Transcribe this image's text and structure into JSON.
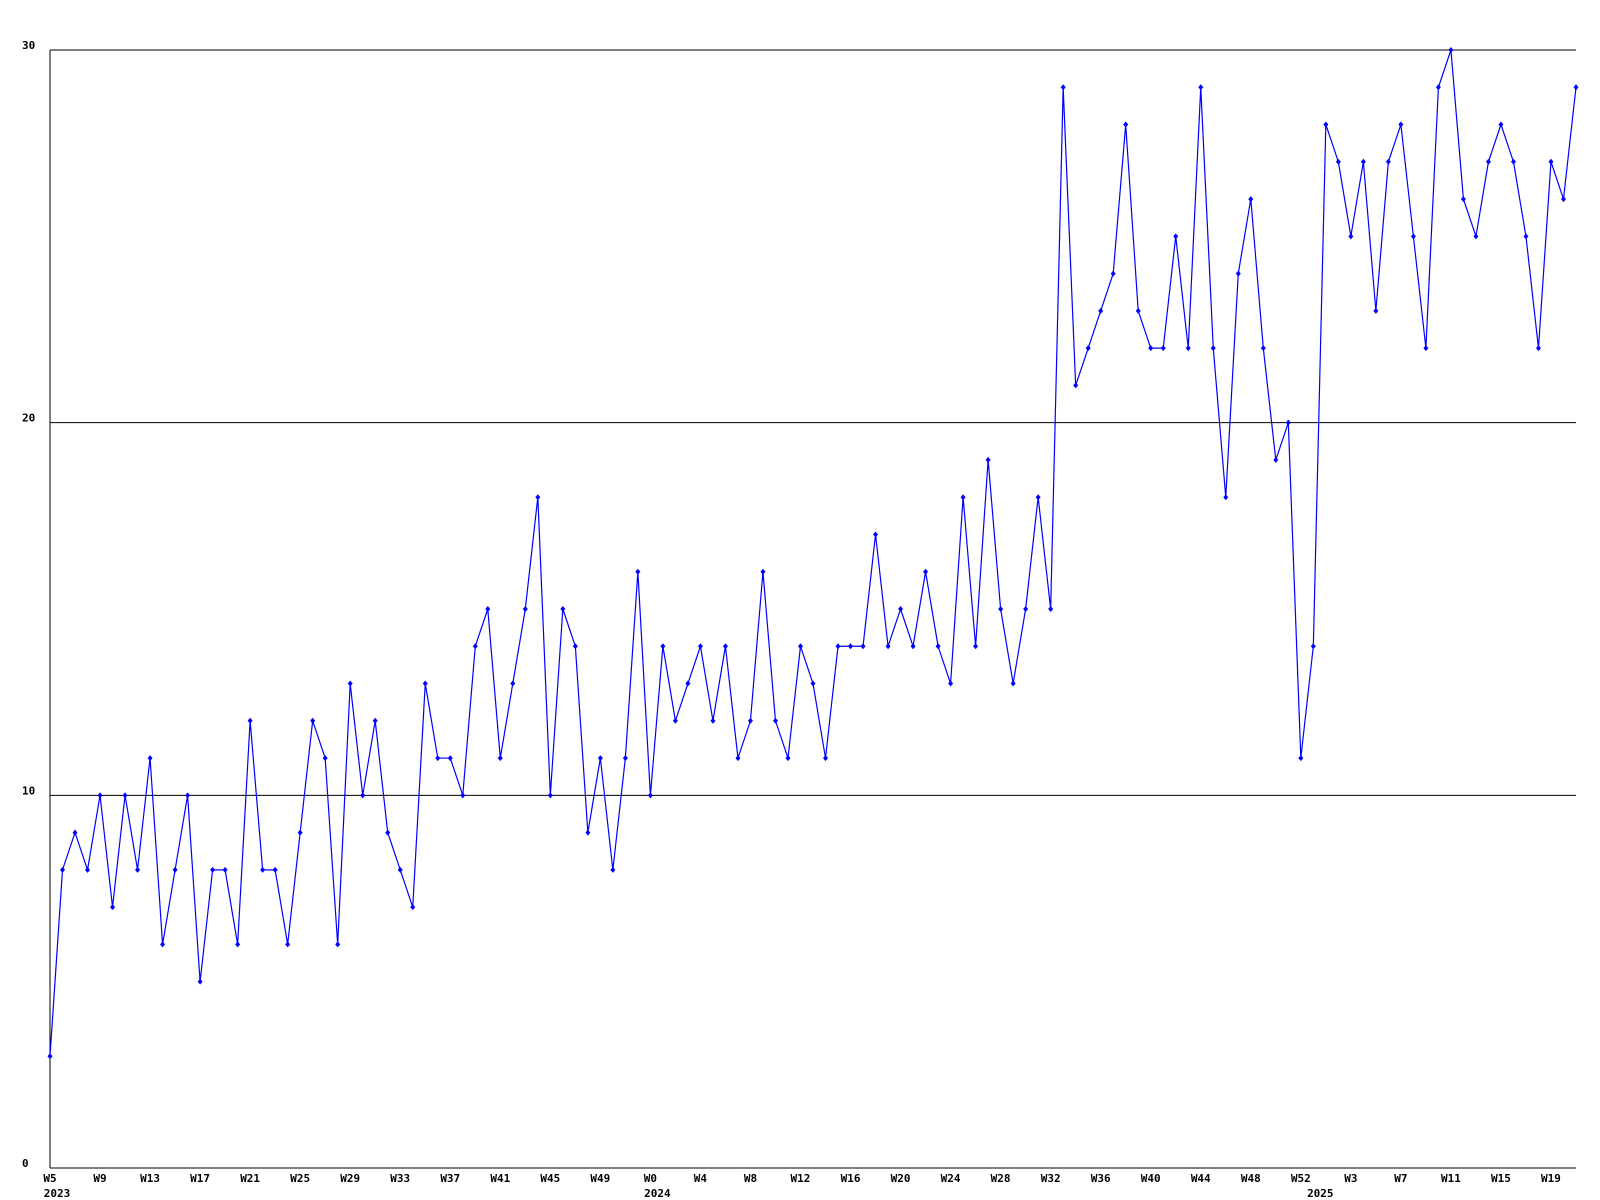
{
  "chart_data": {
    "type": "line",
    "categories": [
      "W5",
      null,
      null,
      null,
      "W9",
      null,
      null,
      null,
      "W13",
      null,
      null,
      null,
      "W17",
      null,
      null,
      null,
      "W21",
      null,
      null,
      null,
      "W25",
      null,
      null,
      null,
      "W29",
      null,
      null,
      null,
      "W33",
      null,
      null,
      null,
      "W37",
      null,
      null,
      null,
      "W41",
      null,
      null,
      null,
      "W45",
      null,
      null,
      null,
      "W49",
      null,
      null,
      null,
      "W0",
      null,
      null,
      null,
      "W4",
      null,
      null,
      null,
      "W8",
      null,
      null,
      null,
      "W12",
      null,
      null,
      null,
      "W16",
      null,
      null,
      null,
      "W20",
      null,
      null,
      null,
      "W24",
      null,
      null,
      null,
      "W28",
      null,
      null,
      null,
      "W32",
      null,
      null,
      null,
      "W36",
      null,
      null,
      null,
      "W40",
      null,
      null,
      null,
      "W44",
      null,
      null,
      null,
      "W48",
      null,
      null,
      null,
      "W52",
      null,
      null,
      null,
      "W3",
      null,
      null,
      null,
      "W7",
      null,
      null,
      null,
      "W11",
      null,
      null,
      null,
      "W15",
      null,
      null,
      null,
      "W19",
      null,
      null
    ],
    "years": [
      "2023",
      null,
      null,
      null,
      null,
      null,
      null,
      null,
      null,
      null,
      null,
      null,
      null,
      null,
      null,
      null,
      null,
      null,
      null,
      null,
      null,
      null,
      null,
      null,
      null,
      null,
      null,
      null,
      null,
      null,
      null,
      null,
      null,
      null,
      null,
      null,
      null,
      null,
      null,
      null,
      null,
      null,
      null,
      null,
      null,
      null,
      null,
      null,
      "2024",
      null,
      null,
      null,
      null,
      null,
      null,
      null,
      null,
      null,
      null,
      null,
      null,
      null,
      null,
      null,
      null,
      null,
      null,
      null,
      null,
      null,
      null,
      null,
      null,
      null,
      null,
      null,
      null,
      null,
      null,
      null,
      null,
      null,
      null,
      null,
      null,
      null,
      null,
      null,
      null,
      null,
      null,
      null,
      null,
      null,
      null,
      null,
      null,
      null,
      null,
      null,
      null,
      "2025",
      null,
      null,
      null,
      null,
      null,
      null,
      null,
      null,
      null,
      null,
      null,
      null,
      null,
      null,
      null,
      null,
      null,
      null,
      null,
      null,
      null
    ],
    "series": [
      {
        "color": "#0000ff",
        "values": [
          3,
          8,
          9,
          8,
          10,
          7,
          10,
          8,
          11,
          6,
          8,
          10,
          5,
          8,
          8,
          6,
          12,
          8,
          8,
          6,
          9,
          12,
          11,
          6,
          13,
          10,
          12,
          9,
          8,
          7,
          13,
          11,
          11,
          10,
          14,
          15,
          11,
          13,
          15,
          18,
          10,
          15,
          14,
          9,
          11,
          8,
          11,
          16,
          10,
          14,
          12,
          13,
          14,
          12,
          14,
          11,
          12,
          16,
          12,
          11,
          14,
          13,
          11,
          14,
          14,
          14,
          17,
          14,
          15,
          14,
          16,
          14,
          13,
          18,
          14,
          19,
          15,
          13,
          15,
          18,
          15,
          29,
          21,
          22,
          23,
          24,
          28,
          23,
          22,
          22,
          25,
          22,
          29,
          22,
          18,
          24,
          26,
          22,
          19,
          20,
          11,
          14,
          28,
          27,
          25,
          27,
          23,
          27,
          28,
          25,
          22,
          29,
          30,
          26,
          25,
          27,
          28,
          27,
          25,
          22,
          27,
          26,
          29
        ]
      }
    ],
    "ylim": [
      0,
      30
    ],
    "yticks": [
      0,
      10,
      20,
      30
    ],
    "grid": true
  }
}
